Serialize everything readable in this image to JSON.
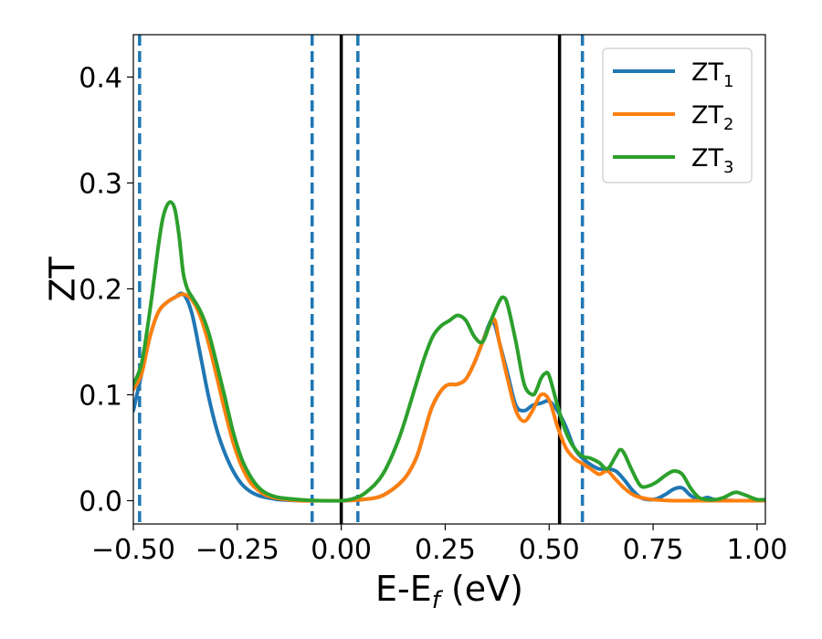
{
  "chart_data": {
    "type": "line",
    "title": "",
    "xlabel": "E-E",
    "xlabel_sub": "f",
    "xlabel_unit": " (eV)",
    "ylabel": "ZT",
    "xlim": [
      -0.5,
      1.02
    ],
    "ylim": [
      -0.022,
      0.44
    ],
    "x_ticks": [
      -0.5,
      -0.25,
      0.0,
      0.25,
      0.5,
      0.75,
      1.0
    ],
    "x_tick_labels": [
      "−0.50",
      "−0.25",
      "0.00",
      "0.25",
      "0.50",
      "0.75",
      "1.00"
    ],
    "y_ticks": [
      0.0,
      0.1,
      0.2,
      0.3,
      0.4
    ],
    "y_tick_labels": [
      "0.0",
      "0.1",
      "0.2",
      "0.3",
      "0.4"
    ],
    "grid": false,
    "legend_position": "top-right",
    "vlines_solid": [
      0.0,
      0.525
    ],
    "vlines_dashed": [
      -0.485,
      -0.07,
      0.04,
      0.58
    ],
    "series": [
      {
        "name": "ZT",
        "name_sub": "1",
        "color": "#1f77b4",
        "x": [
          -0.5,
          -0.48,
          -0.46,
          -0.44,
          -0.42,
          -0.4,
          -0.38,
          -0.36,
          -0.34,
          -0.32,
          -0.3,
          -0.28,
          -0.26,
          -0.24,
          -0.22,
          -0.2,
          -0.18,
          -0.15,
          -0.1,
          -0.05,
          0.0,
          0.05,
          0.1,
          0.15,
          0.18,
          0.2,
          0.22,
          0.25,
          0.28,
          0.3,
          0.32,
          0.34,
          0.36,
          0.37,
          0.38,
          0.4,
          0.42,
          0.44,
          0.46,
          0.48,
          0.5,
          0.52,
          0.54,
          0.56,
          0.58,
          0.6,
          0.62,
          0.64,
          0.66,
          0.68,
          0.7,
          0.72,
          0.74,
          0.76,
          0.78,
          0.8,
          0.82,
          0.84,
          0.86,
          0.88,
          0.9,
          0.95,
          1.0,
          1.02
        ],
        "y": [
          0.085,
          0.12,
          0.155,
          0.178,
          0.187,
          0.192,
          0.195,
          0.178,
          0.14,
          0.1,
          0.068,
          0.045,
          0.028,
          0.016,
          0.009,
          0.005,
          0.003,
          0.001,
          0.0,
          0.0,
          0.0,
          0.001,
          0.005,
          0.02,
          0.04,
          0.065,
          0.09,
          0.108,
          0.11,
          0.115,
          0.13,
          0.15,
          0.17,
          0.165,
          0.15,
          0.12,
          0.09,
          0.085,
          0.09,
          0.092,
          0.094,
          0.085,
          0.07,
          0.05,
          0.04,
          0.034,
          0.03,
          0.03,
          0.028,
          0.02,
          0.01,
          0.003,
          0.001,
          0.002,
          0.006,
          0.011,
          0.012,
          0.005,
          0.001,
          0.003,
          0.001,
          0.0,
          0.0,
          0.0
        ]
      },
      {
        "name": "ZT",
        "name_sub": "2",
        "color": "#ff7f0e",
        "x": [
          -0.5,
          -0.48,
          -0.46,
          -0.44,
          -0.42,
          -0.4,
          -0.38,
          -0.36,
          -0.34,
          -0.32,
          -0.3,
          -0.28,
          -0.26,
          -0.24,
          -0.22,
          -0.2,
          -0.18,
          -0.15,
          -0.1,
          -0.05,
          0.0,
          0.05,
          0.1,
          0.15,
          0.18,
          0.2,
          0.22,
          0.25,
          0.28,
          0.3,
          0.32,
          0.34,
          0.36,
          0.37,
          0.38,
          0.4,
          0.42,
          0.44,
          0.46,
          0.48,
          0.5,
          0.52,
          0.54,
          0.56,
          0.58,
          0.6,
          0.62,
          0.64,
          0.66,
          0.68,
          0.7,
          0.72,
          0.75,
          0.8,
          0.85,
          0.9,
          0.95,
          1.0,
          1.02
        ],
        "y": [
          0.105,
          0.12,
          0.155,
          0.178,
          0.187,
          0.192,
          0.195,
          0.19,
          0.175,
          0.15,
          0.118,
          0.085,
          0.055,
          0.033,
          0.018,
          0.01,
          0.005,
          0.002,
          0.0,
          0.0,
          0.0,
          0.001,
          0.005,
          0.02,
          0.04,
          0.065,
          0.09,
          0.108,
          0.11,
          0.115,
          0.13,
          0.15,
          0.168,
          0.17,
          0.15,
          0.115,
          0.085,
          0.075,
          0.085,
          0.1,
          0.095,
          0.07,
          0.05,
          0.04,
          0.035,
          0.03,
          0.025,
          0.028,
          0.02,
          0.012,
          0.006,
          0.003,
          0.001,
          0.0,
          0.0,
          0.0,
          0.0,
          0.0,
          0.0
        ]
      },
      {
        "name": "ZT",
        "name_sub": "3",
        "color": "#2ca02c",
        "x": [
          -0.5,
          -0.48,
          -0.46,
          -0.44,
          -0.43,
          -0.42,
          -0.41,
          -0.4,
          -0.39,
          -0.38,
          -0.37,
          -0.36,
          -0.34,
          -0.32,
          -0.3,
          -0.28,
          -0.26,
          -0.24,
          -0.22,
          -0.2,
          -0.18,
          -0.15,
          -0.1,
          -0.05,
          0.0,
          0.03,
          0.06,
          0.1,
          0.14,
          0.18,
          0.2,
          0.22,
          0.24,
          0.26,
          0.28,
          0.3,
          0.32,
          0.34,
          0.36,
          0.38,
          0.39,
          0.4,
          0.42,
          0.44,
          0.46,
          0.47,
          0.48,
          0.49,
          0.5,
          0.52,
          0.54,
          0.56,
          0.58,
          0.6,
          0.62,
          0.64,
          0.66,
          0.67,
          0.68,
          0.7,
          0.72,
          0.74,
          0.76,
          0.78,
          0.8,
          0.82,
          0.84,
          0.86,
          0.88,
          0.9,
          0.92,
          0.94,
          0.95,
          0.96,
          0.98,
          1.0,
          1.02
        ],
        "y": [
          0.11,
          0.13,
          0.18,
          0.24,
          0.265,
          0.278,
          0.282,
          0.275,
          0.25,
          0.215,
          0.2,
          0.193,
          0.18,
          0.16,
          0.13,
          0.098,
          0.065,
          0.04,
          0.024,
          0.013,
          0.007,
          0.003,
          0.001,
          0.0,
          0.0,
          0.002,
          0.008,
          0.025,
          0.06,
          0.11,
          0.135,
          0.155,
          0.165,
          0.17,
          0.175,
          0.17,
          0.155,
          0.15,
          0.17,
          0.188,
          0.192,
          0.185,
          0.15,
          0.11,
          0.1,
          0.105,
          0.115,
          0.12,
          0.118,
          0.09,
          0.065,
          0.05,
          0.042,
          0.04,
          0.036,
          0.03,
          0.042,
          0.048,
          0.045,
          0.028,
          0.014,
          0.014,
          0.018,
          0.024,
          0.028,
          0.025,
          0.012,
          0.003,
          0.001,
          0.001,
          0.003,
          0.007,
          0.008,
          0.007,
          0.004,
          0.001,
          0.001
        ]
      }
    ]
  }
}
